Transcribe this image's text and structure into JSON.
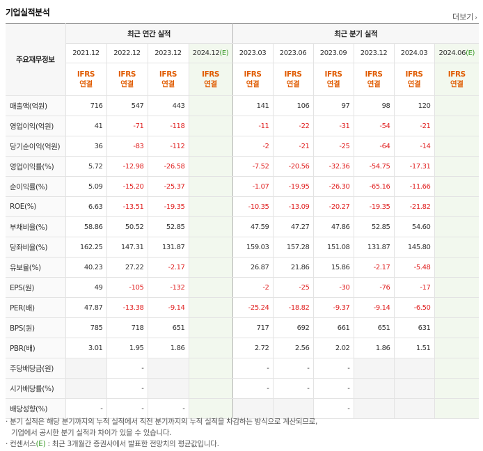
{
  "header": {
    "title": "기업실적분석",
    "more_label": "더보기",
    "more_arrow": "›"
  },
  "table": {
    "label_header": "주요재무정보",
    "annual_group": "최근 연간 실적",
    "quarter_group": "최근 분기 실적",
    "annual_dates": [
      "2021.12",
      "2022.12",
      "2023.12",
      "2024.12"
    ],
    "annual_est_suffix": "(E)",
    "quarter_dates": [
      "2023.03",
      "2023.06",
      "2023.09",
      "2023.12",
      "2024.03",
      "2024.06"
    ],
    "quarter_est_suffix": "(E)",
    "ifrs_top": "IFRS",
    "ifrs_bottom": "연결",
    "rows": [
      {
        "label": "매출액(억원)",
        "values": [
          "716",
          "547",
          "443",
          "",
          "141",
          "106",
          "97",
          "98",
          "120",
          ""
        ]
      },
      {
        "label": "영업이익(억원)",
        "values": [
          "41",
          "-71",
          "-118",
          "",
          "-11",
          "-22",
          "-31",
          "-54",
          "-21",
          ""
        ]
      },
      {
        "label": "당기순이익(억원)",
        "values": [
          "36",
          "-83",
          "-112",
          "",
          "-2",
          "-21",
          "-25",
          "-64",
          "-14",
          ""
        ]
      },
      {
        "label": "영업이익률(%)",
        "values": [
          "5.72",
          "-12.98",
          "-26.58",
          "",
          "-7.52",
          "-20.56",
          "-32.36",
          "-54.75",
          "-17.31",
          ""
        ]
      },
      {
        "label": "순이익률(%)",
        "values": [
          "5.09",
          "-15.20",
          "-25.37",
          "",
          "-1.07",
          "-19.95",
          "-26.30",
          "-65.16",
          "-11.66",
          ""
        ]
      },
      {
        "label": "ROE(%)",
        "values": [
          "6.63",
          "-13.51",
          "-19.35",
          "",
          "-10.35",
          "-13.09",
          "-20.27",
          "-19.35",
          "-21.82",
          ""
        ]
      },
      {
        "label": "부채비율(%)",
        "values": [
          "58.86",
          "50.52",
          "52.85",
          "",
          "47.59",
          "47.27",
          "47.86",
          "52.85",
          "54.60",
          ""
        ]
      },
      {
        "label": "당좌비율(%)",
        "values": [
          "162.25",
          "147.31",
          "131.87",
          "",
          "159.03",
          "157.28",
          "151.08",
          "131.87",
          "145.80",
          ""
        ]
      },
      {
        "label": "유보율(%)",
        "values": [
          "40.23",
          "27.22",
          "-2.17",
          "",
          "26.87",
          "21.86",
          "15.86",
          "-2.17",
          "-5.48",
          ""
        ]
      },
      {
        "label": "EPS(원)",
        "values": [
          "49",
          "-105",
          "-132",
          "",
          "-2",
          "-25",
          "-30",
          "-76",
          "-17",
          ""
        ]
      },
      {
        "label": "PER(배)",
        "values": [
          "47.87",
          "-13.38",
          "-9.14",
          "",
          "-25.24",
          "-18.82",
          "-9.37",
          "-9.14",
          "-6.50",
          ""
        ]
      },
      {
        "label": "BPS(원)",
        "values": [
          "785",
          "718",
          "651",
          "",
          "717",
          "692",
          "661",
          "651",
          "631",
          ""
        ]
      },
      {
        "label": "PBR(배)",
        "values": [
          "3.01",
          "1.95",
          "1.86",
          "",
          "2.72",
          "2.56",
          "2.02",
          "1.86",
          "1.51",
          ""
        ]
      },
      {
        "label": "주당배당금(원)",
        "values": [
          "",
          "-",
          "",
          "",
          "-",
          "-",
          "-",
          "",
          "",
          ""
        ]
      },
      {
        "label": "시가배당률(%)",
        "values": [
          "",
          "-",
          "",
          "",
          "-",
          "-",
          "-",
          "",
          "",
          ""
        ]
      },
      {
        "label": "배당성향(%)",
        "values": [
          "-",
          "-",
          "-",
          "",
          "",
          "",
          "-",
          "",
          "",
          ""
        ]
      }
    ]
  },
  "notes": {
    "line1": "· 분기 실적은 해당 분기까지의 누적 실적에서 직전 분기까지의 누적 실적을 차감하는 방식으로 계산되므로,",
    "line2": "  기업에서 공시한 분기 실적과 차이가 있을 수 있습니다.",
    "line3_prefix": "· 컨센서스",
    "line3_mark": "(E)",
    "line3_suffix": " : 최근 3개월간 증권사에서 발표한 전망치의 평균값입니다."
  },
  "colors": {
    "ifrs": "#e05b00",
    "negative": "#e02020",
    "estimate_bg": "#f2f8ee",
    "estimate_mark": "#3a9a28"
  }
}
